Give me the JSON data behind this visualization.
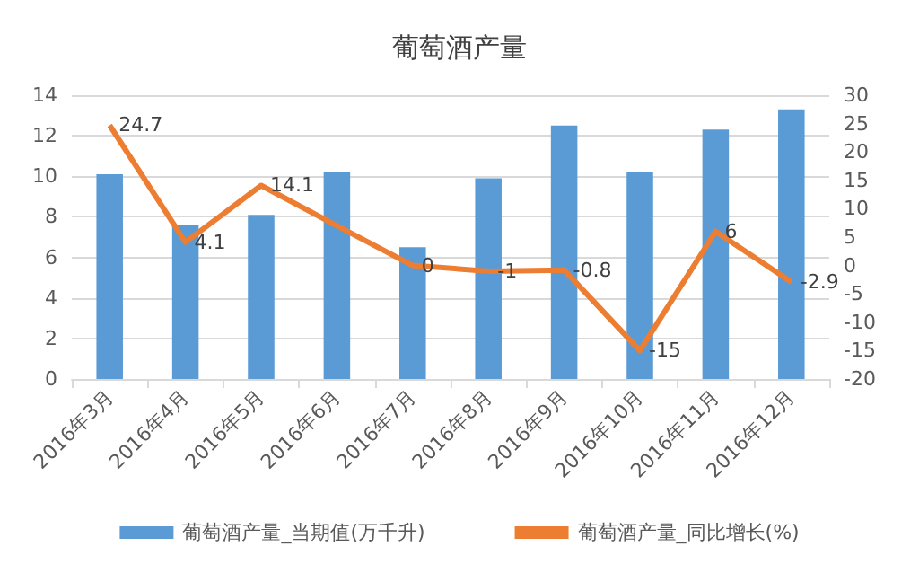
{
  "chart_data": {
    "type": "bar",
    "title": "葡萄酒产量",
    "categories": [
      "2016年3月",
      "2016年4月",
      "2016年5月",
      "2016年6月",
      "2016年7月",
      "2016年8月",
      "2016年9月",
      "2016年10月",
      "2016年11月",
      "2016年12月"
    ],
    "series": [
      {
        "name": "葡萄酒产量_当期值(万千升)",
        "color": "#5b9bd5",
        "values": [
          10.1,
          7.6,
          8.1,
          10.2,
          6.5,
          9.9,
          12.5,
          10.2,
          12.3,
          13.3
        ]
      },
      {
        "name": "葡萄酒产量_同比增长(%)",
        "type": "line",
        "axis": "y2",
        "color": "#ed7d31",
        "values": [
          24.7,
          4.1,
          14.1,
          7,
          0,
          -1,
          -0.8,
          -15,
          6,
          -2.9
        ],
        "value_labels": [
          "24.7",
          "4.1",
          "14.1",
          null,
          "0",
          "-1",
          "-0.8",
          "-15",
          "6",
          "-2.9"
        ]
      }
    ],
    "ylim": [
      0,
      14
    ],
    "yticks": [
      0,
      2,
      4,
      6,
      8,
      10,
      12,
      14
    ],
    "y2lim": [
      -20,
      30
    ],
    "y2ticks": [
      -20,
      -15,
      -10,
      -5,
      0,
      5,
      10,
      15,
      20,
      25,
      30
    ],
    "grid": "y",
    "legend": "bottom",
    "marker": "none"
  }
}
